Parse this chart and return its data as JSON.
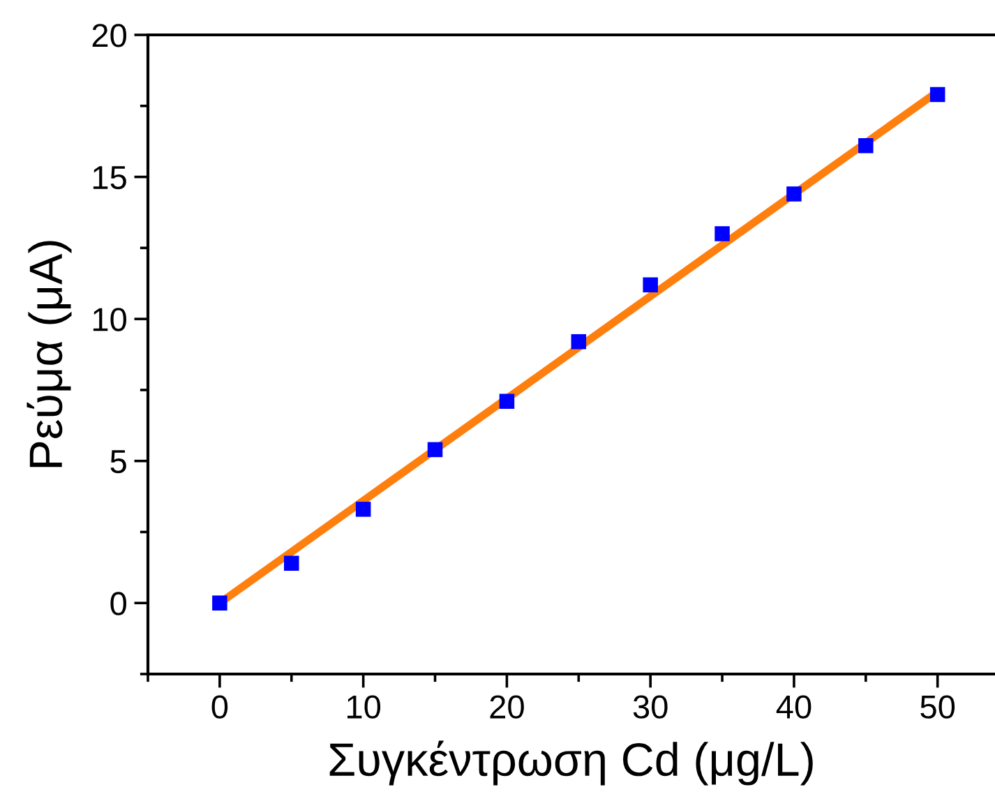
{
  "chart_data": {
    "type": "scatter",
    "xlabel": "Συγκέντρωση Cd (μg/L)",
    "ylabel": "Ρεύμα (μA)",
    "x": [
      0,
      5,
      10,
      15,
      20,
      25,
      30,
      35,
      40,
      45,
      50
    ],
    "series": [
      {
        "type": "line",
        "x": [
          0,
          50
        ],
        "values": [
          0,
          18
        ],
        "color": "#ff7f0e",
        "marker": "none",
        "line_style": "solid"
      },
      {
        "values": [
          0,
          1.4,
          3.3,
          5.4,
          7.1,
          9.2,
          11.2,
          13.0,
          14.4,
          16.1,
          17.9
        ],
        "color": "#0000ff",
        "marker": "square"
      }
    ],
    "xlim": [
      -5,
      54
    ],
    "xticks": [
      0,
      10,
      20,
      30,
      40,
      50
    ],
    "ylim": [
      -2.5,
      20
    ],
    "yticks": [
      0,
      5,
      10,
      15,
      20
    ],
    "grid": false,
    "legend": false
  }
}
